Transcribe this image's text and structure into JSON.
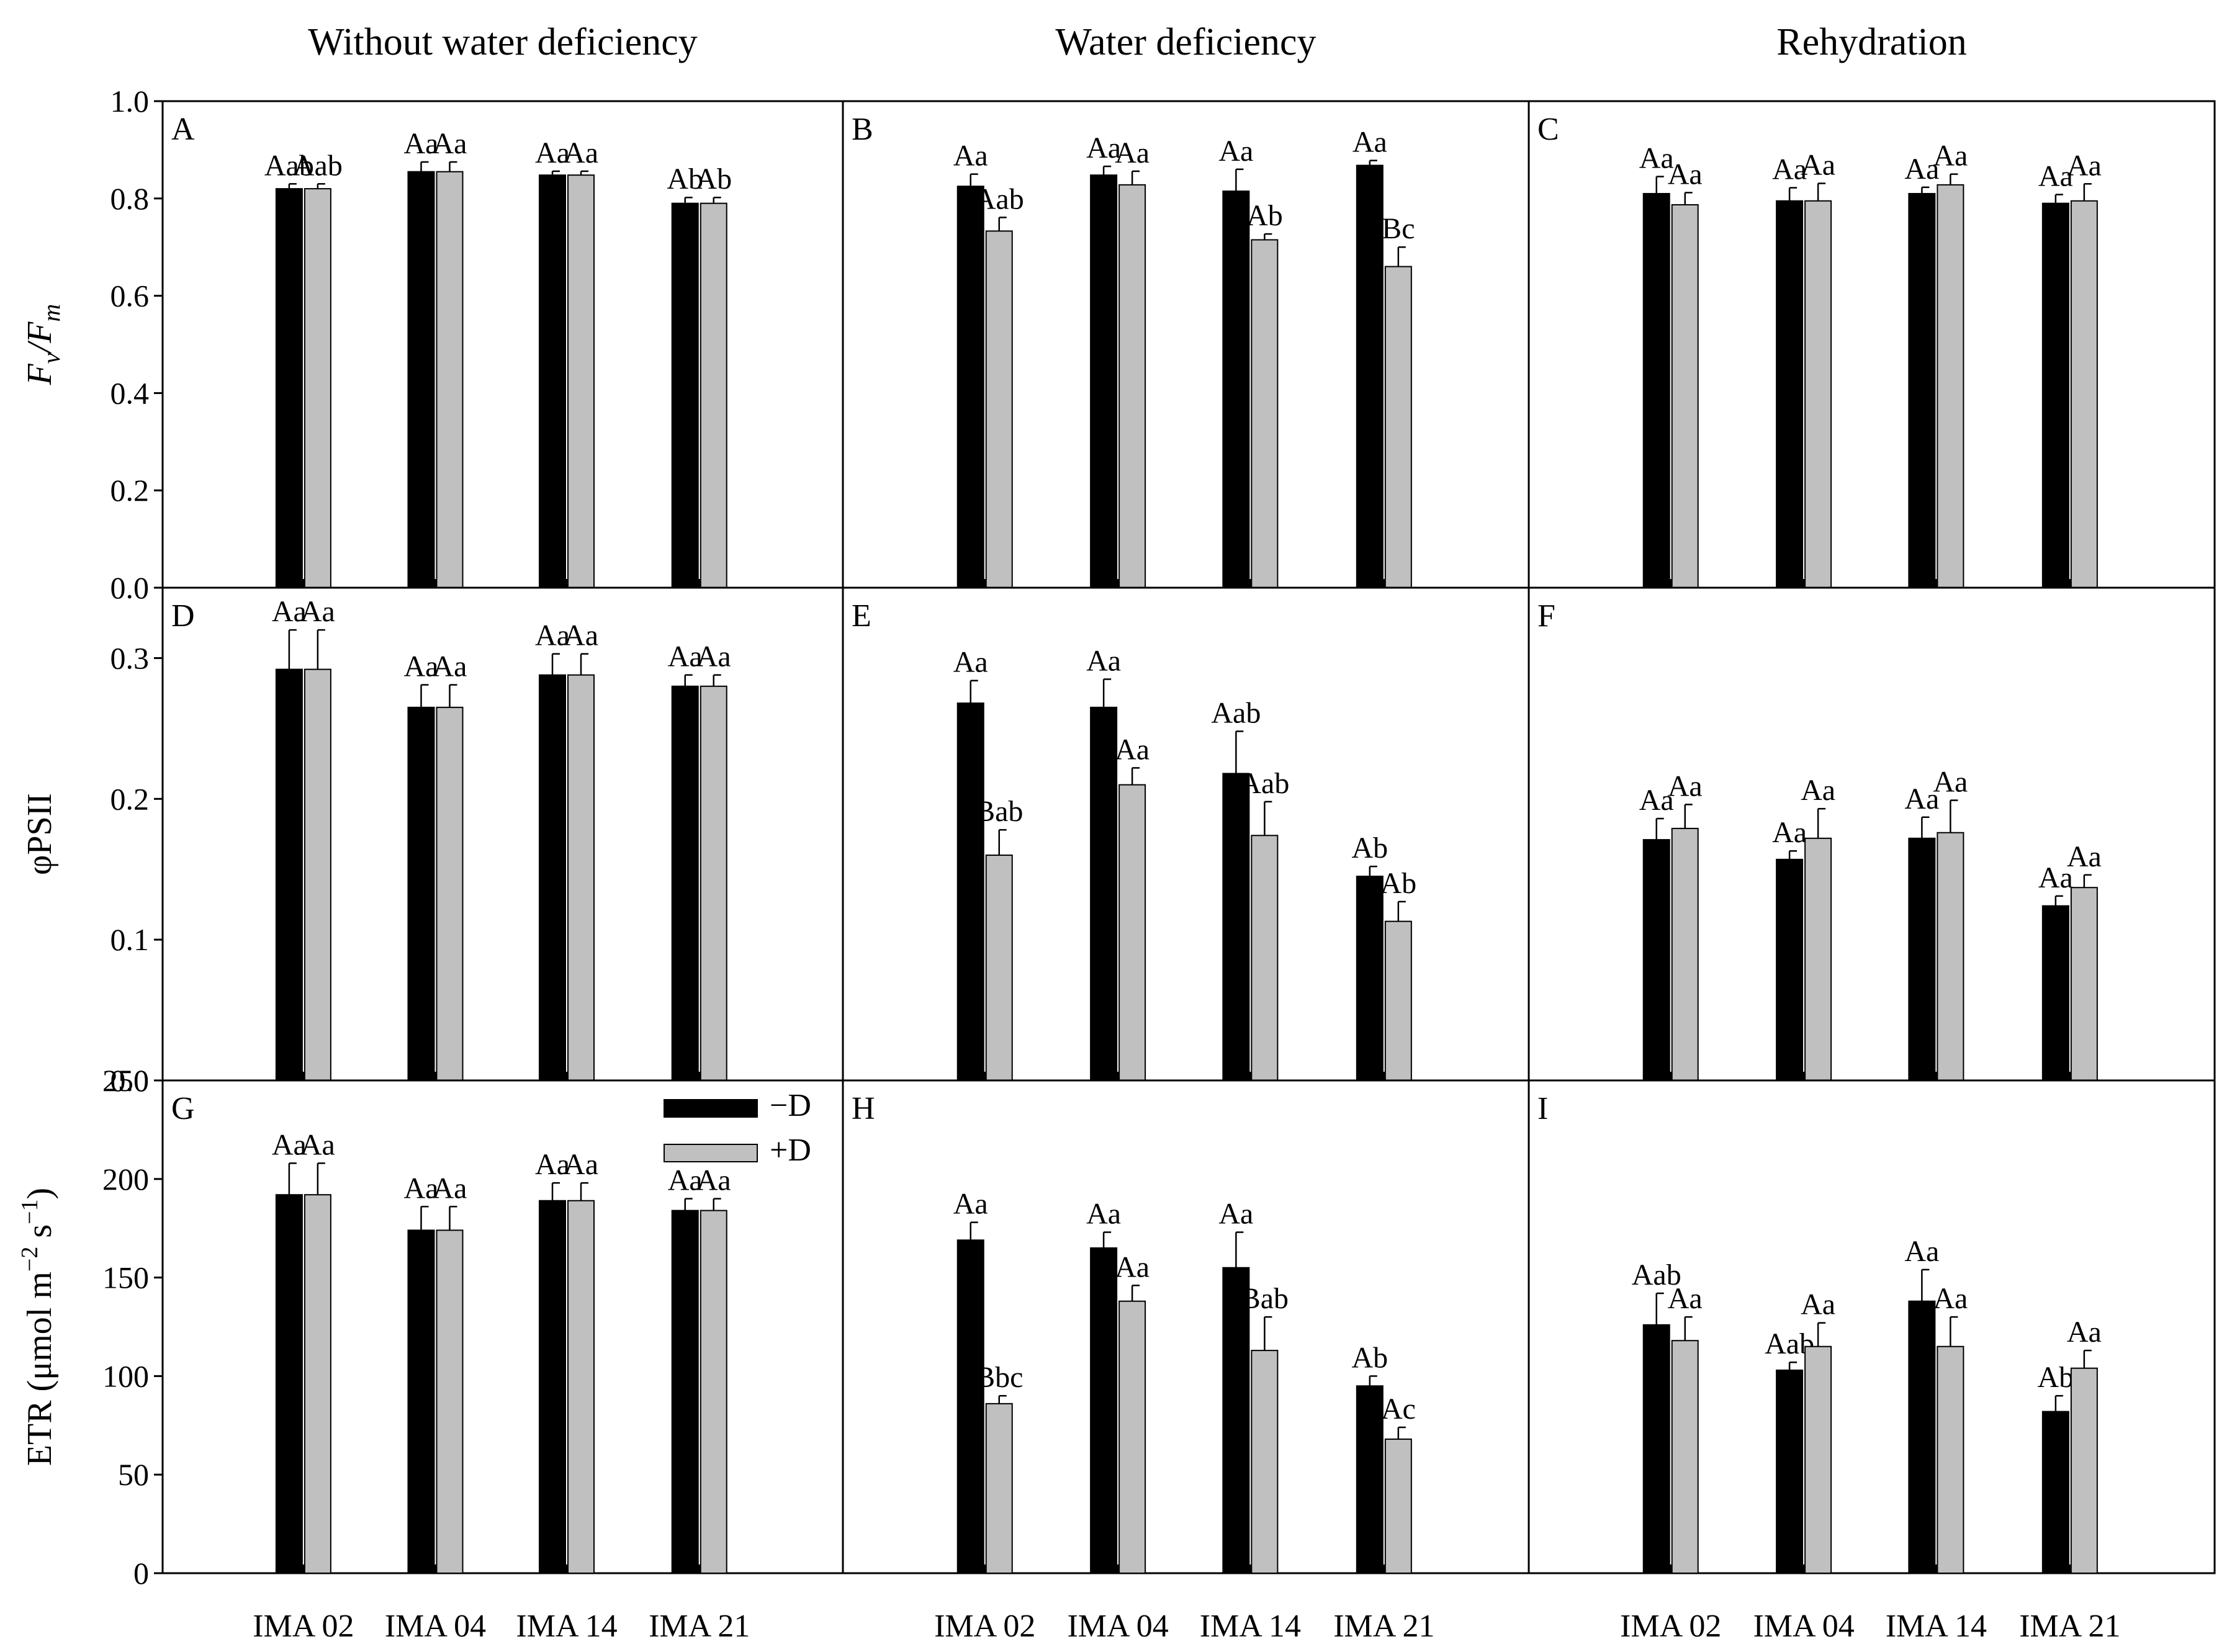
{
  "chart_data": {
    "type": "bar",
    "column_titles": [
      "Without water deficiency",
      "Water deficiency",
      "Rehydration"
    ],
    "categories": [
      "IMA 02",
      "IMA 04",
      "IMA 14",
      "IMA 21"
    ],
    "legend": {
      "position": "top-right of panel G",
      "entries": [
        "−D",
        "+D"
      ]
    },
    "colors": {
      "minusD": "#000000",
      "plusD": "#c0c0c0",
      "axis": "#000000"
    },
    "rows": [
      {
        "ylabel": {
          "main": "F",
          "sub1": "v",
          "sep": "/F",
          "sub2": "m"
        },
        "ylim": [
          0,
          1.0
        ],
        "ticks": [
          "0.0",
          "0.2",
          "0.4",
          "0.6",
          "0.8",
          "1.0"
        ],
        "tick_values": [
          0,
          0.2,
          0.4,
          0.6,
          0.8,
          1.0
        ]
      },
      {
        "ylabel": {
          "text": "φPSII"
        },
        "ylim": [
          0,
          0.35
        ],
        "ticks": [
          "0.0",
          "0.1",
          "0.2",
          "0.3"
        ],
        "tick_values": [
          0,
          0.1,
          0.2,
          0.3
        ]
      },
      {
        "ylabel": {
          "text": "ETR (μmol m",
          "exp1": "−2",
          "mid": " s",
          "exp2": "−1",
          "end": ")"
        },
        "ylim": [
          0,
          250
        ],
        "ticks": [
          "0",
          "50",
          "100",
          "150",
          "200",
          "250"
        ],
        "tick_values": [
          0,
          50,
          100,
          150,
          200,
          250
        ]
      }
    ],
    "panels": [
      {
        "label": "A",
        "row": 0,
        "col": 0,
        "series": [
          {
            "name": "−D",
            "values": [
              0.82,
              0.855,
              0.848,
              0.79
            ],
            "errors": [
              0.01,
              0.02,
              0.008,
              0.012
            ],
            "labels": [
              "Aab",
              "Aa",
              "Aa",
              "Ab"
            ]
          },
          {
            "name": "+D",
            "values": [
              0.82,
              0.855,
              0.848,
              0.79
            ],
            "errors": [
              0.01,
              0.02,
              0.008,
              0.012
            ],
            "labels": [
              "Aab",
              "Aa",
              "Aa",
              "Ab"
            ]
          }
        ]
      },
      {
        "label": "B",
        "row": 0,
        "col": 1,
        "series": [
          {
            "name": "−D",
            "values": [
              0.825,
              0.848,
              0.815,
              0.868
            ],
            "errors": [
              0.025,
              0.018,
              0.045,
              0.01
            ],
            "labels": [
              "Aa",
              "Aa",
              "Aa",
              "Aa"
            ]
          },
          {
            "name": "+D",
            "values": [
              0.733,
              0.828,
              0.715,
              0.66
            ],
            "errors": [
              0.028,
              0.028,
              0.012,
              0.04
            ],
            "labels": [
              "Aab",
              "Aa",
              "Ab",
              "Bc"
            ]
          }
        ]
      },
      {
        "label": "C",
        "row": 0,
        "col": 2,
        "series": [
          {
            "name": "−D",
            "values": [
              0.81,
              0.795,
              0.81,
              0.79
            ],
            "errors": [
              0.035,
              0.027,
              0.013,
              0.018
            ],
            "labels": [
              "Aa",
              "Aa",
              "Aa",
              "Aa"
            ]
          },
          {
            "name": "+D",
            "values": [
              0.787,
              0.795,
              0.828,
              0.795
            ],
            "errors": [
              0.025,
              0.036,
              0.022,
              0.035
            ],
            "labels": [
              "Aa",
              "Aa",
              "Aa",
              "Aa"
            ]
          }
        ]
      },
      {
        "label": "D",
        "row": 1,
        "col": 0,
        "series": [
          {
            "name": "−D",
            "values": [
              0.292,
              0.265,
              0.288,
              0.28
            ],
            "errors": [
              0.028,
              0.016,
              0.015,
              0.008
            ],
            "labels": [
              "Aa",
              "Aa",
              "Aa",
              "Aa"
            ]
          },
          {
            "name": "+D",
            "values": [
              0.292,
              0.265,
              0.288,
              0.28
            ],
            "errors": [
              0.028,
              0.016,
              0.015,
              0.008
            ],
            "labels": [
              "Aa",
              "Aa",
              "Aa",
              "Aa"
            ]
          }
        ]
      },
      {
        "label": "E",
        "row": 1,
        "col": 1,
        "series": [
          {
            "name": "−D",
            "values": [
              0.268,
              0.265,
              0.218,
              0.145
            ],
            "errors": [
              0.016,
              0.02,
              0.03,
              0.007
            ],
            "labels": [
              "Aa",
              "Aa",
              "Aab",
              "Ab"
            ]
          },
          {
            "name": "+D",
            "values": [
              0.16,
              0.21,
              0.174,
              0.113
            ],
            "errors": [
              0.018,
              0.012,
              0.024,
              0.014
            ],
            "labels": [
              "Bab",
              "Aa",
              "Aab",
              "Ab"
            ]
          }
        ]
      },
      {
        "label": "F",
        "row": 1,
        "col": 2,
        "series": [
          {
            "name": "−D",
            "values": [
              0.171,
              0.157,
              0.172,
              0.124
            ],
            "errors": [
              0.015,
              0.006,
              0.015,
              0.007
            ],
            "labels": [
              "Aa",
              "Aa",
              "Aa",
              "Aa"
            ]
          },
          {
            "name": "+D",
            "values": [
              0.179,
              0.172,
              0.176,
              0.137
            ],
            "errors": [
              0.017,
              0.021,
              0.023,
              0.009
            ],
            "labels": [
              "Aa",
              "Aa",
              "Aa",
              "Aa"
            ]
          }
        ]
      },
      {
        "label": "G",
        "row": 2,
        "col": 0,
        "series": [
          {
            "name": "−D",
            "values": [
              192,
              174,
              189,
              184
            ],
            "errors": [
              16,
              12,
              9,
              6
            ],
            "labels": [
              "Aa",
              "Aa",
              "Aa",
              "Aa"
            ]
          },
          {
            "name": "+D",
            "values": [
              192,
              174,
              189,
              184
            ],
            "errors": [
              16,
              12,
              9,
              6
            ],
            "labels": [
              "Aa",
              "Aa",
              "Aa",
              "Aa"
            ]
          }
        ]
      },
      {
        "label": "H",
        "row": 2,
        "col": 1,
        "series": [
          {
            "name": "−D",
            "values": [
              169,
              165,
              155,
              95
            ],
            "errors": [
              9,
              8,
              18,
              5
            ],
            "labels": [
              "Aa",
              "Aa",
              "Aa",
              "Ab"
            ]
          },
          {
            "name": "+D",
            "values": [
              86,
              138,
              113,
              68
            ],
            "errors": [
              4,
              8,
              17,
              6
            ],
            "labels": [
              "Bbc",
              "Aa",
              "Bab",
              "Ac"
            ]
          }
        ]
      },
      {
        "label": "I",
        "row": 2,
        "col": 2,
        "series": [
          {
            "name": "−D",
            "values": [
              126,
              103,
              138,
              82
            ],
            "errors": [
              16,
              4,
              16,
              8
            ],
            "labels": [
              "Aab",
              "Aab",
              "Aa",
              "Ab"
            ]
          },
          {
            "name": "+D",
            "values": [
              118,
              115,
              115,
              104
            ],
            "errors": [
              12,
              12,
              15,
              9
            ],
            "labels": [
              "Aa",
              "Aa",
              "Aa",
              "Aa"
            ]
          }
        ]
      }
    ]
  }
}
